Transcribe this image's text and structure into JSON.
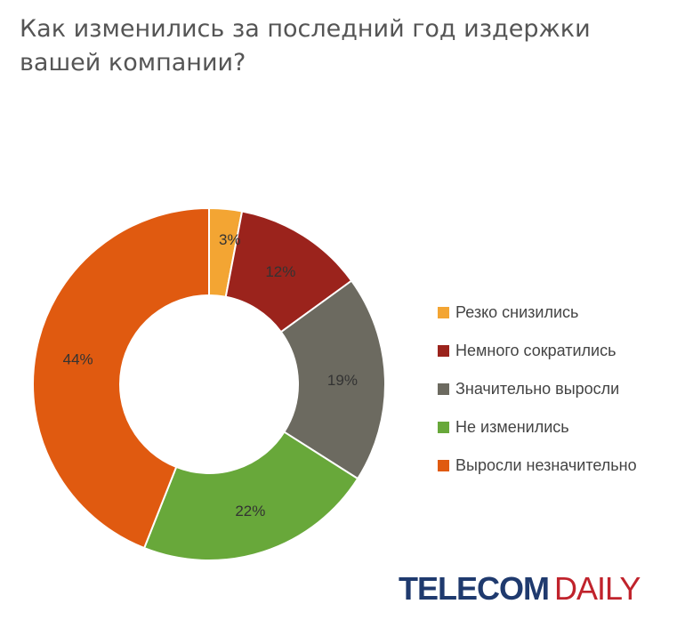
{
  "title": "Как изменились за последний год издержки вашей компании?",
  "chart_data": {
    "type": "pie",
    "variant": "donut",
    "categories": [
      "Резко снизились",
      "Немного сократились",
      "Значительно выросли",
      "Не изменились",
      "Выросли незначительно"
    ],
    "values": [
      3,
      12,
      19,
      22,
      44
    ],
    "labels": [
      "3%",
      "12%",
      "19%",
      "22%",
      "44%"
    ],
    "colors": [
      "#f3a533",
      "#9b231c",
      "#6c6a60",
      "#68a83a",
      "#e05a10"
    ],
    "start_angle": 0,
    "direction": "clockwise",
    "legend_position": "right"
  },
  "logo": {
    "part1": "TELECOM",
    "part2": "DAILY",
    "colors": [
      "#1f3a6e",
      "#c0232c"
    ]
  }
}
